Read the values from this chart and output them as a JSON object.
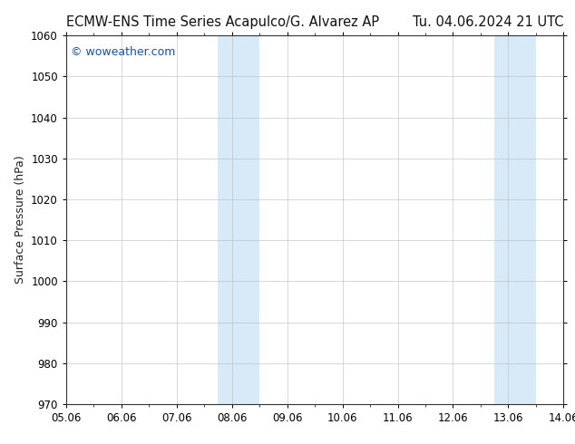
{
  "title_left": "ECMW-ENS Time Series Acapulco/G. Alvarez AP",
  "title_right": "Tu. 04.06.2024 21 UTC",
  "ylabel": "Surface Pressure (hPa)",
  "watermark": "© woweather.com",
  "watermark_color": "#1a5296",
  "ylim": [
    970,
    1060
  ],
  "yticks": [
    970,
    980,
    990,
    1000,
    1010,
    1020,
    1030,
    1040,
    1050,
    1060
  ],
  "xtick_labels": [
    "05.06",
    "06.06",
    "07.06",
    "08.06",
    "09.06",
    "10.06",
    "11.06",
    "12.06",
    "13.06",
    "14.06"
  ],
  "num_xticks": 10,
  "xlim": [
    0,
    9
  ],
  "shaded_bands": [
    {
      "xmin": 2.75,
      "xmax": 3.5
    },
    {
      "xmin": 7.75,
      "xmax": 8.5
    }
  ],
  "band_color": "#d8eaf8",
  "background_color": "#ffffff",
  "title_fontsize": 10.5,
  "axis_label_fontsize": 9,
  "tick_fontsize": 8.5,
  "watermark_fontsize": 9
}
